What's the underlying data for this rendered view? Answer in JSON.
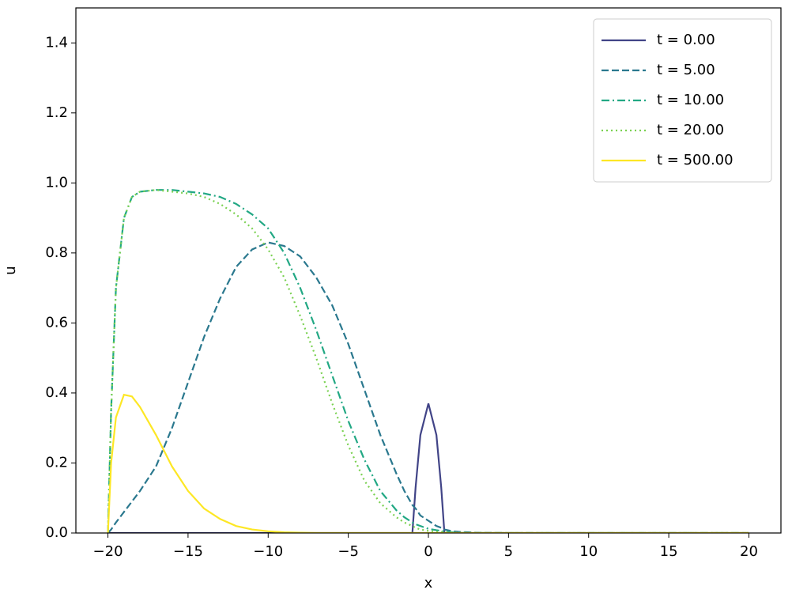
{
  "chart_data": {
    "type": "line",
    "x_label": "x",
    "y_label": "u",
    "x": [
      -20,
      -19.8,
      -19.5,
      -19,
      -18.5,
      -18,
      -17,
      -16,
      -15,
      -14,
      -13,
      -12,
      -11,
      -10,
      -9,
      -8,
      -7,
      -6,
      -5,
      -4,
      -3,
      -2,
      -1.5,
      -1,
      -0.8,
      -0.5,
      0,
      0.5,
      0.8,
      1,
      1.5,
      2,
      3,
      5,
      10,
      15,
      20
    ],
    "series": [
      {
        "name": "t = 0.00",
        "color": "#414487",
        "linestyle": "solid",
        "values": [
          0,
          0,
          0,
          0,
          0,
          0,
          0,
          0,
          0,
          0,
          0,
          0,
          0,
          0,
          0,
          0,
          0,
          0,
          0,
          0,
          0,
          0,
          0,
          0,
          0.13,
          0.28,
          0.37,
          0.28,
          0.13,
          0,
          0,
          0,
          0,
          0,
          0,
          0,
          0
        ]
      },
      {
        "name": "t = 5.00",
        "color": "#2a788e",
        "linestyle": "dashed",
        "values": [
          0,
          0.01,
          0.03,
          0.06,
          0.09,
          0.12,
          0.19,
          0.3,
          0.43,
          0.56,
          0.67,
          0.76,
          0.81,
          0.83,
          0.82,
          0.79,
          0.73,
          0.65,
          0.54,
          0.41,
          0.28,
          0.17,
          0.12,
          0.08,
          0.07,
          0.05,
          0.035,
          0.02,
          0.015,
          0.01,
          0.005,
          0.003,
          0.001,
          0,
          0,
          0,
          0
        ]
      },
      {
        "name": "t = 10.00",
        "color": "#22a884",
        "linestyle": "dashdot",
        "values": [
          0,
          0.35,
          0.7,
          0.9,
          0.96,
          0.975,
          0.98,
          0.98,
          0.975,
          0.97,
          0.96,
          0.94,
          0.91,
          0.87,
          0.8,
          0.7,
          0.58,
          0.45,
          0.32,
          0.21,
          0.12,
          0.065,
          0.045,
          0.03,
          0.025,
          0.02,
          0.012,
          0.008,
          0.006,
          0.004,
          0.002,
          0.001,
          0,
          0,
          0,
          0,
          0
        ]
      },
      {
        "name": "t = 20.00",
        "color": "#7ad151",
        "linestyle": "dotted",
        "values": [
          0,
          0.35,
          0.7,
          0.9,
          0.96,
          0.975,
          0.98,
          0.975,
          0.97,
          0.96,
          0.94,
          0.91,
          0.87,
          0.81,
          0.73,
          0.62,
          0.5,
          0.37,
          0.25,
          0.15,
          0.085,
          0.045,
          0.03,
          0.02,
          0.015,
          0.01,
          0.006,
          0.004,
          0.003,
          0.002,
          0.001,
          0.0005,
          0,
          0,
          0,
          0,
          0
        ]
      },
      {
        "name": "t = 500.00",
        "color": "#fde725",
        "linestyle": "solid",
        "values": [
          0,
          0.2,
          0.33,
          0.395,
          0.39,
          0.36,
          0.28,
          0.19,
          0.12,
          0.07,
          0.04,
          0.02,
          0.01,
          0.005,
          0.002,
          0.001,
          0,
          0,
          0,
          0,
          0,
          0,
          0,
          0,
          0,
          0,
          0,
          0,
          0,
          0,
          0,
          0,
          0,
          0,
          0,
          0,
          0
        ]
      }
    ],
    "xlim": [
      -22,
      22
    ],
    "xticks": [
      {
        "value": -20,
        "label": "−20"
      },
      {
        "value": -15,
        "label": "−15"
      },
      {
        "value": -10,
        "label": "−10"
      },
      {
        "value": -5,
        "label": "−5"
      },
      0,
      5,
      10,
      15,
      20
    ],
    "ylim": [
      0,
      1.5
    ],
    "yticks": [
      {
        "value": 0,
        "label": "0.0"
      },
      0.2,
      0.4,
      0.6,
      0.8,
      {
        "value": 1,
        "label": "1.0"
      },
      1.2,
      1.4
    ],
    "legend": "upper right"
  }
}
